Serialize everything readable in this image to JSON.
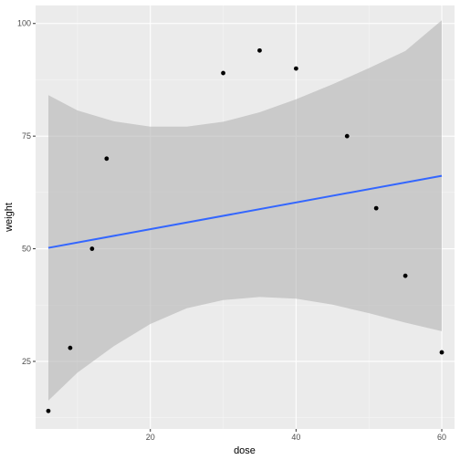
{
  "chart_data": {
    "type": "scatter",
    "xlabel": "dose",
    "ylabel": "weight",
    "xlim": [
      4.25,
      61.75
    ],
    "ylim": [
      10.0,
      104.0
    ],
    "x_ticks": [
      20,
      40,
      60
    ],
    "y_ticks": [
      25,
      50,
      75,
      100
    ],
    "x_tick_labels": [
      "20",
      "40",
      "60"
    ],
    "y_tick_labels": [
      "25",
      "50",
      "75",
      "100"
    ],
    "grid": true,
    "points": [
      {
        "x": 6,
        "y": 14
      },
      {
        "x": 9,
        "y": 28
      },
      {
        "x": 12,
        "y": 50
      },
      {
        "x": 14,
        "y": 70
      },
      {
        "x": 30,
        "y": 89
      },
      {
        "x": 35,
        "y": 94
      },
      {
        "x": 40,
        "y": 90
      },
      {
        "x": 47,
        "y": 75
      },
      {
        "x": 51,
        "y": 59
      },
      {
        "x": 55,
        "y": 44
      },
      {
        "x": 60,
        "y": 27
      }
    ],
    "fit": {
      "method": "linear",
      "x": [
        6,
        60
      ],
      "y": [
        50.2,
        66.2
      ]
    },
    "confidence_band": {
      "x": [
        6,
        10,
        15,
        20,
        25,
        30,
        35,
        40,
        45,
        50,
        55,
        60
      ],
      "lower": [
        16.3,
        22.5,
        28.4,
        33.3,
        36.8,
        38.6,
        39.3,
        38.9,
        37.6,
        35.7,
        33.6,
        31.7
      ],
      "upper": [
        84.1,
        80.7,
        78.3,
        77.1,
        77.1,
        78.2,
        80.3,
        83.2,
        86.5,
        90.1,
        93.9,
        100.7
      ]
    },
    "colors": {
      "panel": "#ebebeb",
      "grid_major": "#ffffff",
      "band": "#b4b4b4",
      "line": "#3366ff",
      "point": "#000000"
    }
  }
}
